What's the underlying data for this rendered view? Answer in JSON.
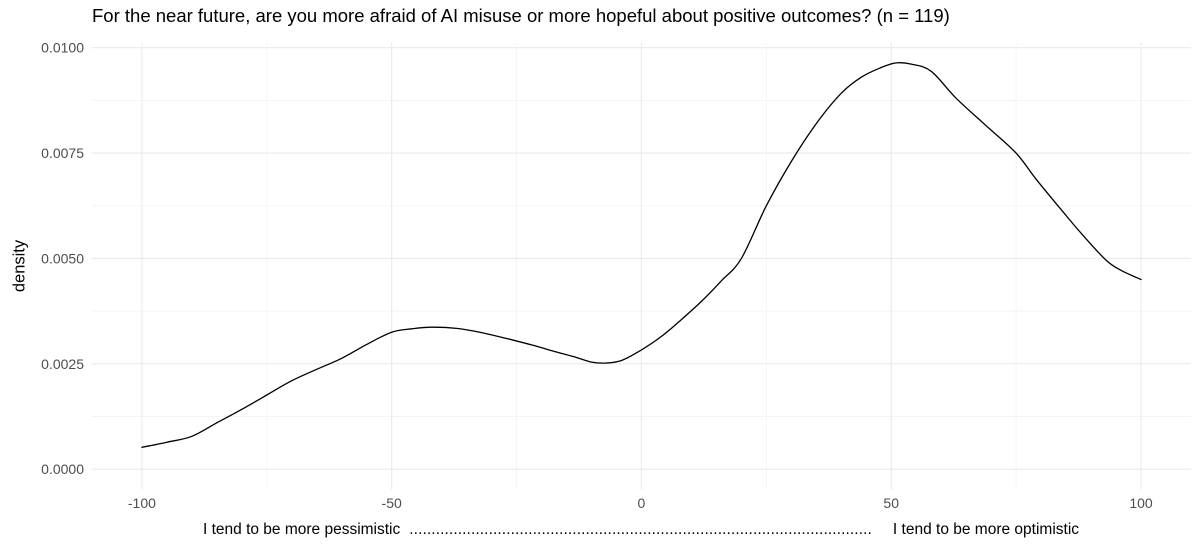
{
  "chart_data": {
    "type": "line",
    "subtype": "density-curve",
    "title": "For the near future, are you more afraid of AI misuse or more hopeful about positive outcomes? (n = 119)",
    "n": 119,
    "ylabel": "density",
    "xlabel_left": "I tend to be more pessimistic",
    "xlabel_dots": ".........................................................................................................",
    "xlabel_right": "I tend to be more optimistic",
    "xlim": [
      -100,
      100
    ],
    "ylim": [
      0,
      0.01
    ],
    "grid": true,
    "legend": "none",
    "x_axis": {
      "ticks": [
        {
          "value": -100,
          "label": "-100"
        },
        {
          "value": -50,
          "label": "-50"
        },
        {
          "value": 0,
          "label": "0"
        },
        {
          "value": 50,
          "label": "50"
        },
        {
          "value": 100,
          "label": "100"
        }
      ],
      "minor_ticks": [
        -75,
        -25,
        25,
        75
      ]
    },
    "y_axis": {
      "ticks": [
        {
          "value": 0.0,
          "label": "0.0000"
        },
        {
          "value": 0.0025,
          "label": "0.0025"
        },
        {
          "value": 0.005,
          "label": "0.0050"
        },
        {
          "value": 0.0075,
          "label": "0.0075"
        },
        {
          "value": 0.01,
          "label": "0.0100"
        }
      ],
      "minor_ticks": [
        0.00125,
        0.00375,
        0.00625,
        0.00875
      ]
    },
    "series": [
      {
        "name": "density",
        "color": "#000000",
        "points": [
          [
            -100,
            0.00052
          ],
          [
            -95,
            0.00064
          ],
          [
            -90,
            0.00078
          ],
          [
            -85,
            0.0011
          ],
          [
            -80,
            0.00142
          ],
          [
            -75,
            0.00176
          ],
          [
            -70,
            0.0021
          ],
          [
            -65,
            0.00237
          ],
          [
            -60,
            0.00263
          ],
          [
            -55,
            0.00296
          ],
          [
            -50,
            0.00325
          ],
          [
            -46,
            0.00333
          ],
          [
            -42,
            0.00337
          ],
          [
            -37,
            0.00334
          ],
          [
            -32,
            0.00324
          ],
          [
            -27,
            0.0031
          ],
          [
            -22,
            0.00295
          ],
          [
            -17,
            0.00278
          ],
          [
            -13,
            0.00265
          ],
          [
            -10,
            0.00254
          ],
          [
            -7,
            0.00252
          ],
          [
            -4,
            0.00258
          ],
          [
            0,
            0.00283
          ],
          [
            4,
            0.00315
          ],
          [
            8,
            0.00355
          ],
          [
            12,
            0.00398
          ],
          [
            16,
            0.00447
          ],
          [
            20,
            0.005
          ],
          [
            25,
            0.00625
          ],
          [
            30,
            0.0073
          ],
          [
            35,
            0.0082
          ],
          [
            40,
            0.00892
          ],
          [
            44,
            0.0093
          ],
          [
            48,
            0.00953
          ],
          [
            51,
            0.00964
          ],
          [
            54,
            0.00961
          ],
          [
            58,
            0.00944
          ],
          [
            63,
            0.0088
          ],
          [
            69,
            0.00815
          ],
          [
            75,
            0.0075
          ],
          [
            79,
            0.00688
          ],
          [
            84,
            0.00616
          ],
          [
            88,
            0.0056
          ],
          [
            93,
            0.00496
          ],
          [
            96,
            0.00472
          ],
          [
            100,
            0.0045
          ]
        ]
      }
    ],
    "colors": {
      "curve": "#000000",
      "grid_major": "#EAEAEA",
      "grid_minor": "#F1F1F1",
      "tick_text": "#4D4D4D",
      "title_text": "#000000",
      "background": "#FFFFFF"
    }
  }
}
